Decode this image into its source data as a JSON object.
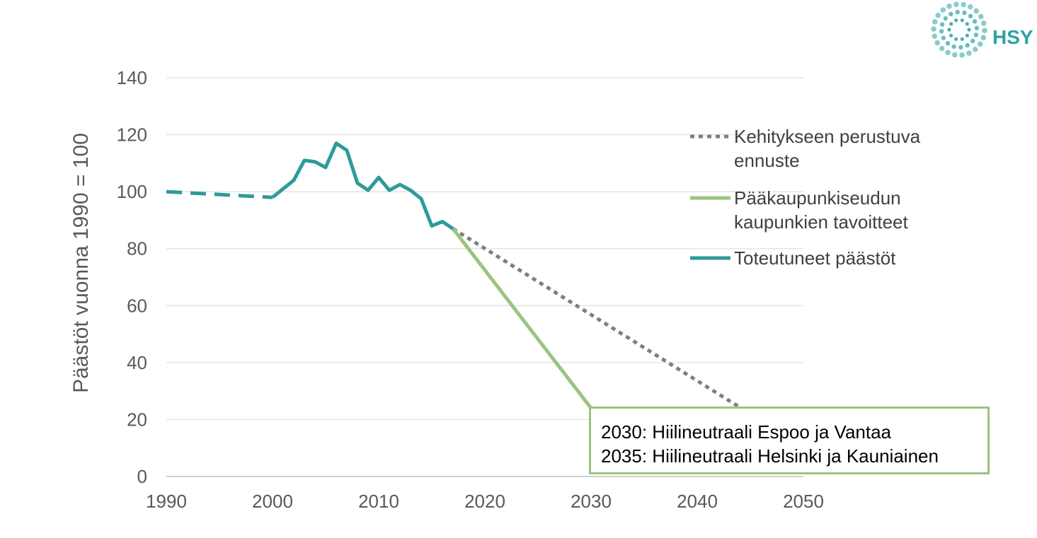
{
  "logo": {
    "text": "HSY",
    "color": "#2aa3a3"
  },
  "annotation": {
    "lines": [
      "2030: Hiilineutraali Espoo ja Vantaa",
      "2035: Hiilineutraali Helsinki ja Kauniainen"
    ],
    "border_color": "#9bc47f"
  },
  "chart_data": {
    "type": "line",
    "title": "",
    "xlabel": "",
    "ylabel": "Päästöt vuonna 1990 = 100",
    "xlim": [
      1990,
      2050
    ],
    "ylim": [
      0,
      140
    ],
    "xticks": [
      1990,
      2000,
      2010,
      2020,
      2030,
      2040,
      2050
    ],
    "yticks": [
      0,
      20,
      40,
      60,
      80,
      100,
      120,
      140
    ],
    "grid": "horizontal",
    "legend_position": "right",
    "series": [
      {
        "name": "Kehitykseen perustuva ennuste",
        "legend_lines": [
          "Kehitykseen perustuva",
          "ennuste"
        ],
        "color": "#7f7f7f",
        "style": "dotted",
        "x": [
          2017,
          2045
        ],
        "y": [
          87,
          22
        ]
      },
      {
        "name": "Pääkaupunkiseudun kaupunkien tavoitteet",
        "legend_lines": [
          "Pääkaupunkiseudun",
          "kaupunkien tavoitteet"
        ],
        "color": "#9bc47f",
        "style": "solid",
        "x": [
          2017,
          2030
        ],
        "y": [
          87,
          24
        ]
      },
      {
        "name": "Toteutuneet päästöt",
        "legend_lines": [
          "Toteutuneet päästöt"
        ],
        "color": "#2e9a9a",
        "style": "solid",
        "x": [
          2000,
          2001,
          2002,
          2003,
          2004,
          2005,
          2006,
          2007,
          2008,
          2009,
          2010,
          2011,
          2012,
          2013,
          2014,
          2015,
          2016,
          2017
        ],
        "y": [
          98,
          101,
          104,
          111,
          110.5,
          108.5,
          117,
          114.5,
          103,
          100.5,
          105,
          100.5,
          102.5,
          100.5,
          97.5,
          88,
          89.5,
          87
        ],
        "gap_segment": {
          "x": [
            1990,
            2000
          ],
          "y": [
            100,
            98
          ],
          "style": "dashed"
        }
      }
    ]
  }
}
